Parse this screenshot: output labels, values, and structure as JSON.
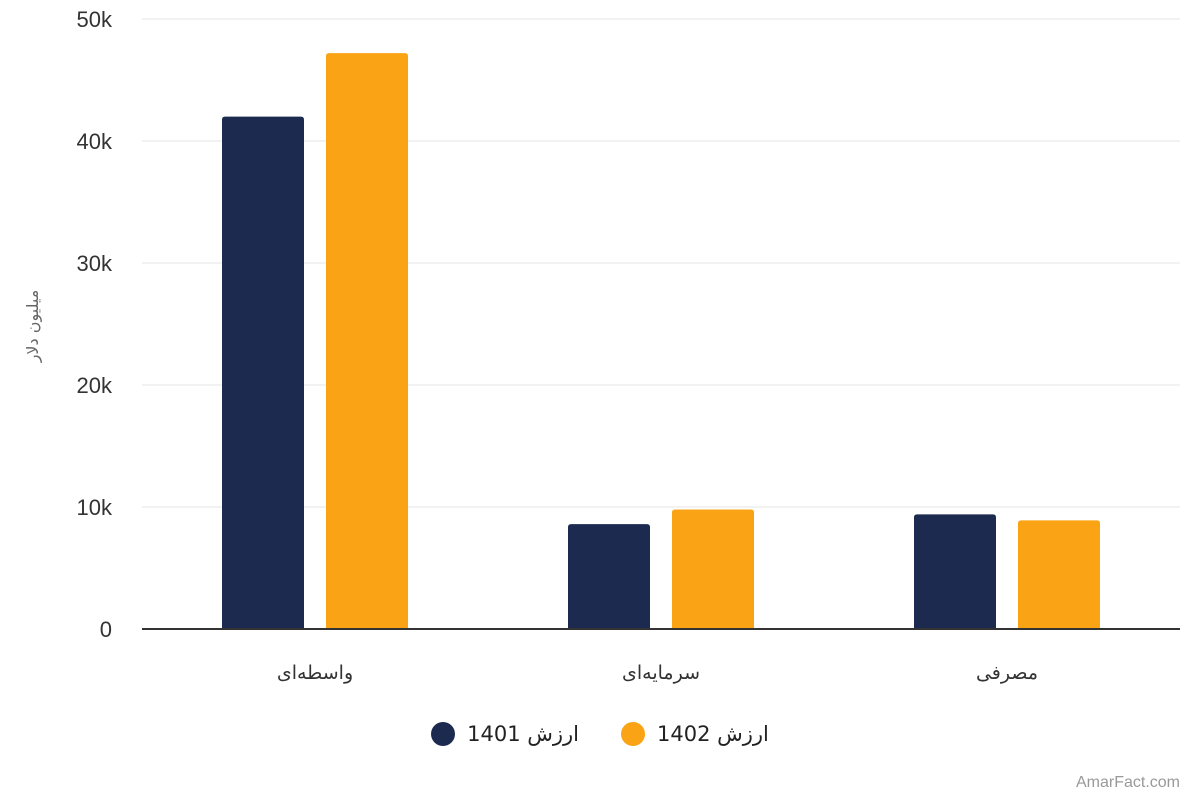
{
  "chart_data": {
    "type": "bar",
    "categories": [
      "واسطه‌ای",
      "سرمایه‌ای",
      "مصرفی"
    ],
    "series": [
      {
        "name": "ارزش 1401",
        "color": "#1b2a4e",
        "values": [
          42000,
          8600,
          9400
        ]
      },
      {
        "name": "ارزش 1402",
        "color": "#f9a315",
        "values": [
          47200,
          9800,
          8900
        ]
      }
    ],
    "ylabel": "میلیون دلار",
    "ylim": [
      0,
      50000
    ],
    "yticks": [
      0,
      10000,
      20000,
      30000,
      40000,
      50000
    ],
    "ytick_labels": [
      "0",
      "10k",
      "20k",
      "30k",
      "40k",
      "50k"
    ],
    "grid": true,
    "legend_position": "bottom"
  },
  "credit": "AmarFact.com"
}
